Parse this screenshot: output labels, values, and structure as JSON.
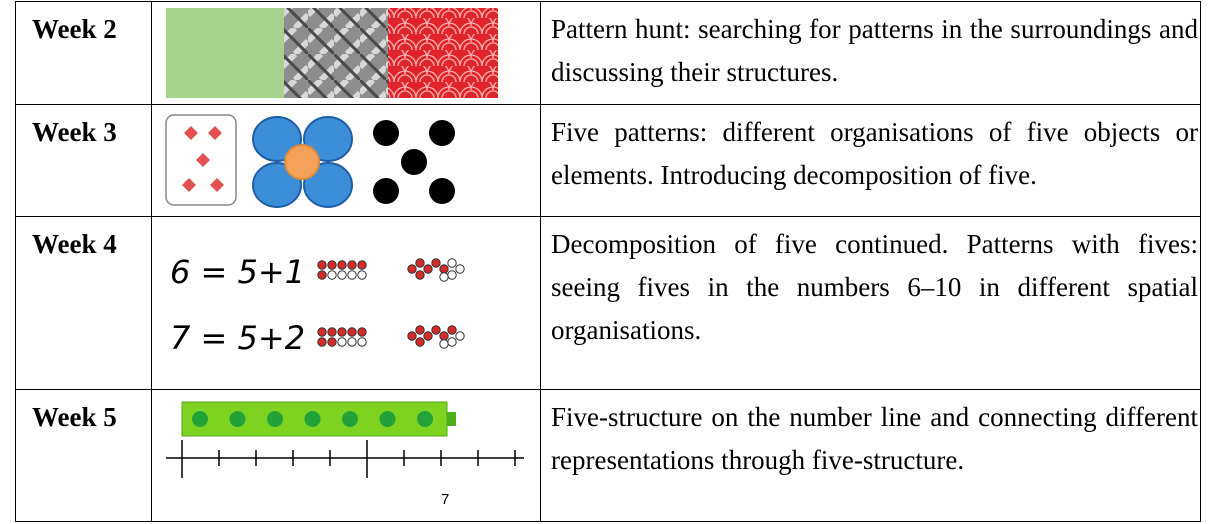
{
  "table": {
    "rows": [
      {
        "week": "Week 2",
        "description": "Pattern hunt: searching for patterns in the surroundings and discussing their structures."
      },
      {
        "week": "Week 3",
        "description": "Five patterns: different organisations of five objects or elements. Introducing decomposition of five."
      },
      {
        "week": "Week 4",
        "description": "Decomposition of five continued. Patterns with fives: seeing fives in the numbers 6–10 in different spatial organisations.",
        "equations": [
          "6 = 5+1",
          "7 = 5+2"
        ]
      },
      {
        "week": "Week 5",
        "description": "Five-structure on the number line and connecting different representations through five-structure.",
        "number_label": "7"
      }
    ]
  }
}
